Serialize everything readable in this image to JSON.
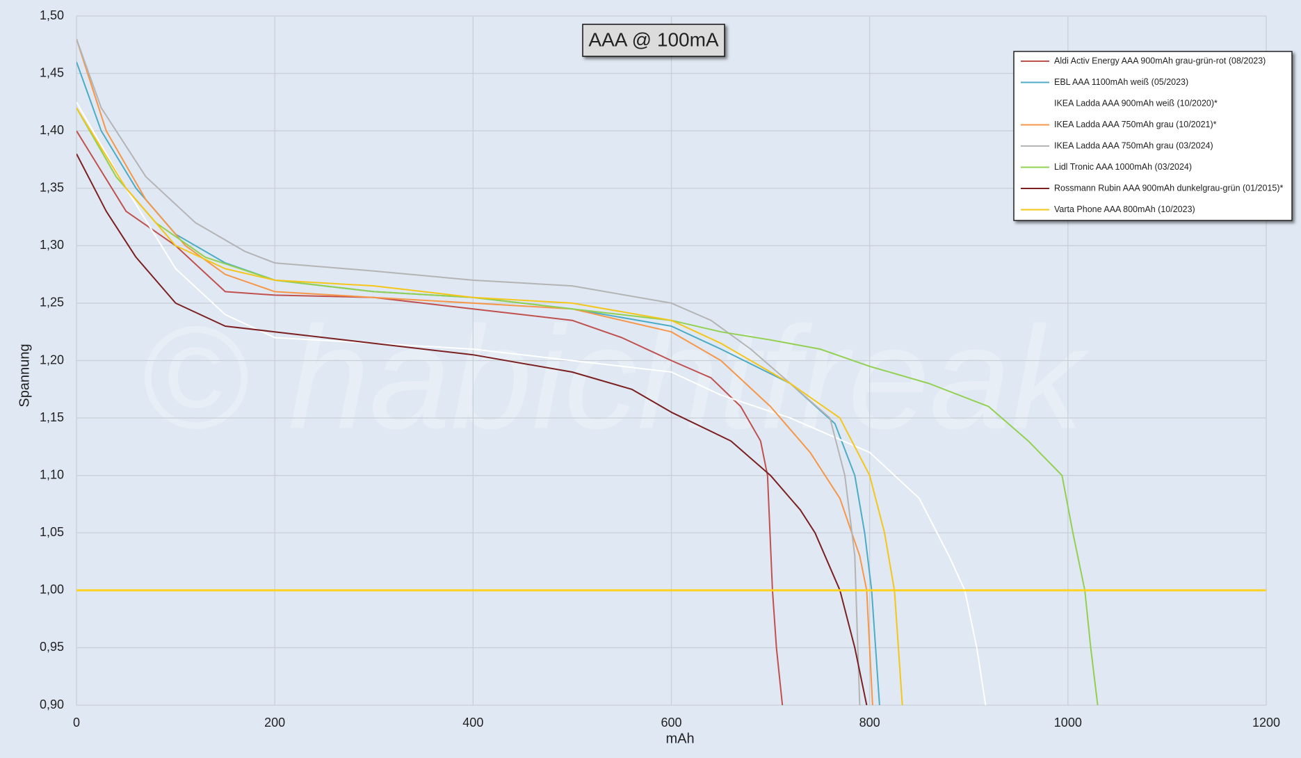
{
  "chart_data": {
    "type": "line",
    "title": "AAA @ 100mA",
    "xlabel": "mAh",
    "ylabel": "Spannung",
    "watermark": "© habichtfreak",
    "xlim": [
      0,
      1200
    ],
    "xticks": [
      0,
      200,
      400,
      600,
      800,
      1000,
      1200
    ],
    "ylim": [
      0.9,
      1.5
    ],
    "yticks": [
      {
        "value": 0.9,
        "label": "0,90"
      },
      {
        "value": 0.95,
        "label": "0,95"
      },
      {
        "value": 1.0,
        "label": "1,00"
      },
      {
        "value": 1.05,
        "label": "1,05"
      },
      {
        "value": 1.1,
        "label": "1,10"
      },
      {
        "value": 1.15,
        "label": "1,15"
      },
      {
        "value": 1.2,
        "label": "1,20"
      },
      {
        "value": 1.25,
        "label": "1,25"
      },
      {
        "value": 1.3,
        "label": "1,30"
      },
      {
        "value": 1.35,
        "label": "1,35"
      },
      {
        "value": 1.4,
        "label": "1,40"
      },
      {
        "value": 1.45,
        "label": "1,45"
      },
      {
        "value": 1.5,
        "label": "1,50"
      }
    ],
    "grid": true,
    "legend": "upper right",
    "reference_line": {
      "y": 1.0,
      "color": "#ffd21f"
    },
    "series": [
      {
        "name": "Aldi Activ Energy AAA 900mAh grau-grün-rot (08/2023)",
        "color": "#c0504d",
        "x": [
          0,
          50,
          100,
          150,
          200,
          300,
          400,
          500,
          550,
          600,
          640,
          670,
          690,
          697,
          702,
          706,
          712
        ],
        "values": [
          1.4,
          1.33,
          1.3,
          1.26,
          1.257,
          1.255,
          1.245,
          1.235,
          1.22,
          1.2,
          1.185,
          1.16,
          1.13,
          1.1,
          1.0,
          0.95,
          0.9
        ]
      },
      {
        "name": "EBL AAA 1100mAh weiß (05/2023)",
        "color": "#4bacc6",
        "x": [
          0,
          25,
          60,
          100,
          150,
          200,
          300,
          400,
          500,
          600,
          650,
          720,
          765,
          785,
          795,
          802,
          810
        ],
        "values": [
          1.46,
          1.4,
          1.35,
          1.31,
          1.285,
          1.27,
          1.26,
          1.255,
          1.245,
          1.23,
          1.21,
          1.18,
          1.145,
          1.1,
          1.05,
          1.0,
          0.9
        ]
      },
      {
        "name": "IKEA Ladda AAA 900mAh weiß (10/2020)*",
        "color": "#ffffff",
        "x": [
          0,
          50,
          100,
          150,
          200,
          300,
          400,
          500,
          600,
          650,
          720,
          800,
          850,
          880,
          896,
          908,
          917
        ],
        "values": [
          1.425,
          1.35,
          1.28,
          1.24,
          1.22,
          1.215,
          1.21,
          1.2,
          1.19,
          1.17,
          1.15,
          1.12,
          1.08,
          1.03,
          1.0,
          0.95,
          0.9
        ]
      },
      {
        "name": "IKEA Ladda AAA 750mAh grau (10/2021)*",
        "color": "#f79646",
        "x": [
          0,
          30,
          70,
          110,
          150,
          200,
          300,
          400,
          500,
          600,
          650,
          700,
          740,
          770,
          790,
          797,
          803
        ],
        "values": [
          1.48,
          1.4,
          1.34,
          1.3,
          1.275,
          1.26,
          1.255,
          1.25,
          1.245,
          1.225,
          1.2,
          1.16,
          1.12,
          1.08,
          1.03,
          1.0,
          0.9
        ]
      },
      {
        "name": "IKEA Ladda AAA 750mAh grau (03/2024)",
        "color": "#b4b4b4",
        "x": [
          0,
          25,
          70,
          120,
          170,
          200,
          300,
          400,
          500,
          600,
          640,
          680,
          720,
          760,
          775,
          785,
          788,
          790
        ],
        "values": [
          1.48,
          1.42,
          1.36,
          1.32,
          1.295,
          1.285,
          1.278,
          1.27,
          1.265,
          1.25,
          1.235,
          1.21,
          1.18,
          1.15,
          1.1,
          1.03,
          0.95,
          0.9
        ]
      },
      {
        "name": "Lidl Tronic AAA 1000mAh (03/2024)",
        "color": "#92d050",
        "x": [
          0,
          40,
          80,
          130,
          200,
          300,
          400,
          500,
          600,
          650,
          700,
          750,
          800,
          860,
          920,
          960,
          994,
          1005,
          1017,
          1023,
          1030
        ],
        "values": [
          1.42,
          1.36,
          1.32,
          1.29,
          1.27,
          1.26,
          1.255,
          1.245,
          1.235,
          1.225,
          1.218,
          1.21,
          1.195,
          1.18,
          1.16,
          1.13,
          1.1,
          1.05,
          1.0,
          0.95,
          0.9
        ]
      },
      {
        "name": "Rossmann Rubin AAA 900mAh dunkelgrau-grün (01/2015)*",
        "color": "#7b1f1f",
        "x": [
          0,
          30,
          60,
          100,
          150,
          200,
          300,
          400,
          500,
          560,
          600,
          660,
          700,
          730,
          745,
          770,
          785,
          797
        ],
        "values": [
          1.38,
          1.33,
          1.29,
          1.25,
          1.23,
          1.225,
          1.215,
          1.205,
          1.19,
          1.175,
          1.155,
          1.13,
          1.1,
          1.07,
          1.05,
          1.0,
          0.95,
          0.9
        ]
      },
      {
        "name": "Varta Phone AAA 800mAh (10/2023)",
        "color": "#f5c518",
        "x": [
          0,
          50,
          100,
          150,
          200,
          300,
          350,
          400,
          500,
          600,
          650,
          720,
          770,
          800,
          815,
          825,
          833
        ],
        "values": [
          1.42,
          1.35,
          1.3,
          1.28,
          1.27,
          1.265,
          1.26,
          1.255,
          1.25,
          1.235,
          1.215,
          1.18,
          1.15,
          1.1,
          1.05,
          1.0,
          0.9
        ]
      }
    ]
  }
}
